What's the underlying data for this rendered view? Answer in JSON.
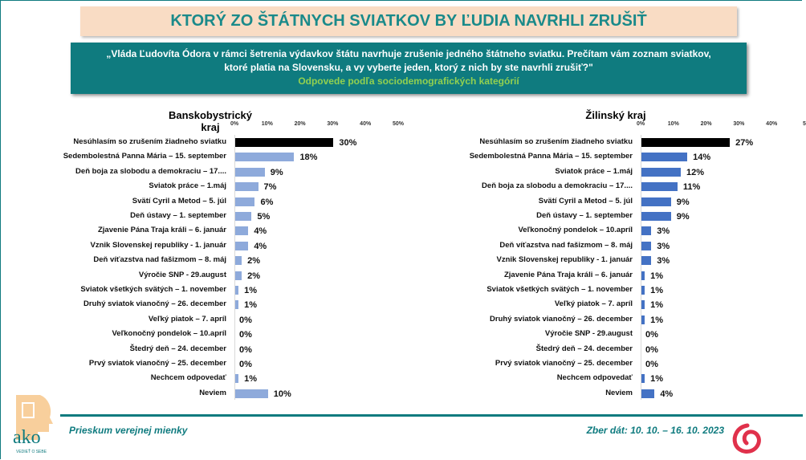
{
  "header": {
    "title": "KTORÝ ZO ŠTÁTNYCH SVIATKOV BY ĽUDIA NAVRHLI ZRUŠIŤ",
    "question": "„Vláda Ľudovíta Ódora v rámci šetrenia výdavkov štátu navrhuje zrušenie jedného štátneho sviatku. Prečítam vám zoznam sviatkov,  ktoré platia na Slovensku, a vy vyberte jeden,  ktorý z nich by ste navrhli zrušiť?\"",
    "subtitle": "Odpovede podľa sociodemografických kategórií"
  },
  "footer": {
    "left": "Prieskum verejnej mienky",
    "right": "Zber dát: 10. 10. – 16. 10. 2023",
    "logo_text": "ako",
    "logo_tagline": "VEDIEŤ O SEBE"
  },
  "colors": {
    "teal": "#0f7b7f",
    "highlight": "#000000",
    "left_bars": "#8eaadb",
    "right_bars": "#4472c4"
  },
  "chart_data": [
    {
      "type": "bar",
      "orientation": "horizontal",
      "title": "Banskobystrický kraj",
      "xlim": [
        0,
        50
      ],
      "ticks": [
        "0%",
        "10%",
        "20%",
        "30%",
        "40%",
        "50%"
      ],
      "categories": [
        "Nesúhlasím so zrušením žiadneho sviatku",
        "Sedembolestná Panna Mária – 15. september",
        "Deň boja za slobodu a demokraciu – 17....",
        "Sviatok práce – 1.máj",
        "Svätí Cyril a Metod – 5. júl",
        "Deň ústavy – 1. september",
        "Zjavenie Pána Traja králi – 6. január",
        "Vznik Slovenskej republiky - 1. január",
        "Deň víťazstva nad fašizmom – 8. máj",
        "Výročie SNP - 29.august",
        "Sviatok všetkých svätých – 1. november",
        "Druhý sviatok vianočný – 26. december",
        "Veľký piatok – 7. apríl",
        "Veľkonočný pondelok – 10.apríl",
        "Štedrý deň – 24. december",
        "Prvý sviatok vianočný – 25. december",
        "Nechcem odpovedať",
        "Neviem"
      ],
      "values": [
        30,
        18,
        9,
        7,
        6,
        5,
        4,
        4,
        2,
        2,
        1,
        1,
        0,
        0,
        0,
        0,
        1,
        10
      ]
    },
    {
      "type": "bar",
      "orientation": "horizontal",
      "title": "Žilinský kraj",
      "xlim": [
        0,
        50
      ],
      "ticks": [
        "0%",
        "10%",
        "20%",
        "30%",
        "40%",
        "5"
      ],
      "categories": [
        "Nesúhlasím so zrušením žiadneho sviatku",
        "Sedembolestná Panna Mária – 15. september",
        "Sviatok práce – 1.máj",
        "Deň boja za slobodu a demokraciu – 17....",
        "Svätí Cyril a Metod – 5. júl",
        "Deň ústavy – 1. september",
        "Veľkonočný pondelok – 10.apríl",
        "Deň víťazstva nad fašizmom – 8. máj",
        "Vznik Slovenskej republiky - 1. január",
        "Zjavenie Pána Traja králi – 6. január",
        "Sviatok všetkých svätých – 1. november",
        "Veľký piatok – 7. apríl",
        "Druhý sviatok vianočný – 26. december",
        "Výročie SNP - 29.august",
        "Štedrý deň – 24. december",
        "Prvý sviatok vianočný – 25. december",
        "Nechcem odpovedať",
        "Neviem"
      ],
      "values": [
        27,
        14,
        12,
        11,
        9,
        9,
        3,
        3,
        3,
        1,
        1,
        1,
        1,
        0,
        0,
        0,
        1,
        4
      ]
    }
  ]
}
